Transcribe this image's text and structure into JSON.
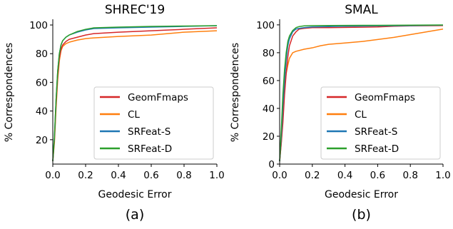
{
  "colors": {
    "GeomFmaps": "#d62728",
    "CL": "#ff7f0e",
    "SRFeat-S": "#1f77b4",
    "SRFeat-D": "#2ca02c"
  },
  "chart_data": [
    {
      "type": "line",
      "title": "SHREC'19",
      "xlabel": "Geodesic Error",
      "ylabel": "% Correspondences",
      "xlim": [
        0,
        1.0
      ],
      "ylim": [
        3,
        103
      ],
      "xticks": [
        "0.0",
        "0.2",
        "0.4",
        "0.6",
        "0.8",
        "1.0"
      ],
      "xtick_values": [
        0,
        0.2,
        0.4,
        0.6,
        0.8,
        1.0
      ],
      "yticks": [
        "20",
        "40",
        "60",
        "80",
        "100"
      ],
      "ytick_values": [
        20,
        40,
        60,
        80,
        100
      ],
      "panel_label": "(a)",
      "legend_position": "lower-right",
      "grid": false,
      "series": [
        {
          "name": "GeomFmaps",
          "points": [
            [
              0,
              5
            ],
            [
              0.01,
              20
            ],
            [
              0.02,
              45
            ],
            [
              0.03,
              65
            ],
            [
              0.04,
              77
            ],
            [
              0.05,
              83
            ],
            [
              0.06,
              86
            ],
            [
              0.08,
              88.5
            ],
            [
              0.1,
              90
            ],
            [
              0.15,
              91.5
            ],
            [
              0.2,
              93
            ],
            [
              0.25,
              94
            ],
            [
              0.4,
              95
            ],
            [
              0.6,
              96
            ],
            [
              0.8,
              97
            ],
            [
              1.0,
              98
            ]
          ]
        },
        {
          "name": "CL",
          "points": [
            [
              0,
              5
            ],
            [
              0.01,
              18
            ],
            [
              0.02,
              42
            ],
            [
              0.03,
              62
            ],
            [
              0.04,
              75
            ],
            [
              0.05,
              82
            ],
            [
              0.06,
              85
            ],
            [
              0.08,
              87
            ],
            [
              0.1,
              88
            ],
            [
              0.15,
              89.5
            ],
            [
              0.2,
              90.5
            ],
            [
              0.25,
              91
            ],
            [
              0.4,
              92
            ],
            [
              0.6,
              93
            ],
            [
              0.7,
              94
            ],
            [
              0.8,
              95
            ],
            [
              1.0,
              96
            ]
          ]
        },
        {
          "name": "SRFeat-S",
          "points": [
            [
              0,
              5
            ],
            [
              0.01,
              22
            ],
            [
              0.02,
              48
            ],
            [
              0.03,
              68
            ],
            [
              0.04,
              80
            ],
            [
              0.05,
              86
            ],
            [
              0.06,
              89
            ],
            [
              0.08,
              91.5
            ],
            [
              0.1,
              93
            ],
            [
              0.15,
              95
            ],
            [
              0.2,
              96.5
            ],
            [
              0.25,
              97.5
            ],
            [
              0.4,
              98
            ],
            [
              0.6,
              98.5
            ],
            [
              0.8,
              99
            ],
            [
              1.0,
              99.5
            ]
          ]
        },
        {
          "name": "SRFeat-D",
          "points": [
            [
              0,
              5
            ],
            [
              0.01,
              22
            ],
            [
              0.02,
              48
            ],
            [
              0.03,
              68
            ],
            [
              0.04,
              80
            ],
            [
              0.05,
              86
            ],
            [
              0.06,
              89
            ],
            [
              0.08,
              91.5
            ],
            [
              0.1,
              93
            ],
            [
              0.15,
              95.5
            ],
            [
              0.2,
              97
            ],
            [
              0.25,
              98
            ],
            [
              0.4,
              98.5
            ],
            [
              0.6,
              99
            ],
            [
              0.8,
              99.3
            ],
            [
              1.0,
              99.5
            ]
          ]
        }
      ]
    },
    {
      "type": "line",
      "title": "SMAL",
      "xlabel": "Geodesic Error",
      "ylabel": "% Correspondences",
      "xlim": [
        0,
        1.0
      ],
      "ylim": [
        0,
        103
      ],
      "xticks": [
        "0.0",
        "0.2",
        "0.4",
        "0.6",
        "0.8",
        "1.0"
      ],
      "xtick_values": [
        0,
        0.2,
        0.4,
        0.6,
        0.8,
        1.0
      ],
      "yticks": [
        "0",
        "20",
        "40",
        "60",
        "80",
        "100"
      ],
      "ytick_values": [
        0,
        20,
        40,
        60,
        80,
        100
      ],
      "panel_label": "(b)",
      "legend_position": "lower-right",
      "grid": false,
      "series": [
        {
          "name": "GeomFmaps",
          "points": [
            [
              0,
              2
            ],
            [
              0.01,
              15
            ],
            [
              0.02,
              30
            ],
            [
              0.03,
              50
            ],
            [
              0.04,
              65
            ],
            [
              0.05,
              77
            ],
            [
              0.06,
              85
            ],
            [
              0.08,
              92
            ],
            [
              0.1,
              95
            ],
            [
              0.12,
              97
            ],
            [
              0.15,
              97.5
            ],
            [
              0.2,
              98
            ],
            [
              0.3,
              98
            ],
            [
              0.5,
              98.3
            ],
            [
              0.6,
              98.5
            ],
            [
              0.7,
              99
            ],
            [
              0.8,
              99.3
            ],
            [
              1.0,
              99.5
            ]
          ]
        },
        {
          "name": "CL",
          "points": [
            [
              0,
              2
            ],
            [
              0.01,
              15
            ],
            [
              0.02,
              35
            ],
            [
              0.03,
              55
            ],
            [
              0.04,
              65
            ],
            [
              0.05,
              71
            ],
            [
              0.06,
              76
            ],
            [
              0.08,
              80
            ],
            [
              0.1,
              81
            ],
            [
              0.15,
              82.5
            ],
            [
              0.2,
              83.5
            ],
            [
              0.25,
              85
            ],
            [
              0.3,
              86
            ],
            [
              0.4,
              87
            ],
            [
              0.5,
              88
            ],
            [
              0.6,
              89.5
            ],
            [
              0.7,
              91
            ],
            [
              0.8,
              93
            ],
            [
              0.9,
              95
            ],
            [
              1.0,
              97
            ]
          ]
        },
        {
          "name": "SRFeat-S",
          "points": [
            [
              0,
              2
            ],
            [
              0.01,
              20
            ],
            [
              0.02,
              42
            ],
            [
              0.03,
              60
            ],
            [
              0.04,
              75
            ],
            [
              0.05,
              85
            ],
            [
              0.06,
              90
            ],
            [
              0.08,
              95
            ],
            [
              0.1,
              97
            ],
            [
              0.12,
              97.5
            ],
            [
              0.15,
              98
            ],
            [
              0.2,
              98.5
            ],
            [
              0.4,
              99
            ],
            [
              0.6,
              99.3
            ],
            [
              0.8,
              99.5
            ],
            [
              1.0,
              99.8
            ]
          ]
        },
        {
          "name": "SRFeat-D",
          "points": [
            [
              0,
              2
            ],
            [
              0.01,
              25
            ],
            [
              0.02,
              50
            ],
            [
              0.03,
              68
            ],
            [
              0.04,
              80
            ],
            [
              0.05,
              88
            ],
            [
              0.06,
              92
            ],
            [
              0.08,
              96
            ],
            [
              0.1,
              98
            ],
            [
              0.12,
              98.8
            ],
            [
              0.15,
              99.3
            ],
            [
              0.2,
              99.5
            ],
            [
              0.4,
              99.6
            ],
            [
              0.6,
              99.7
            ],
            [
              0.8,
              99.8
            ],
            [
              1.0,
              99.9
            ]
          ]
        }
      ]
    }
  ]
}
